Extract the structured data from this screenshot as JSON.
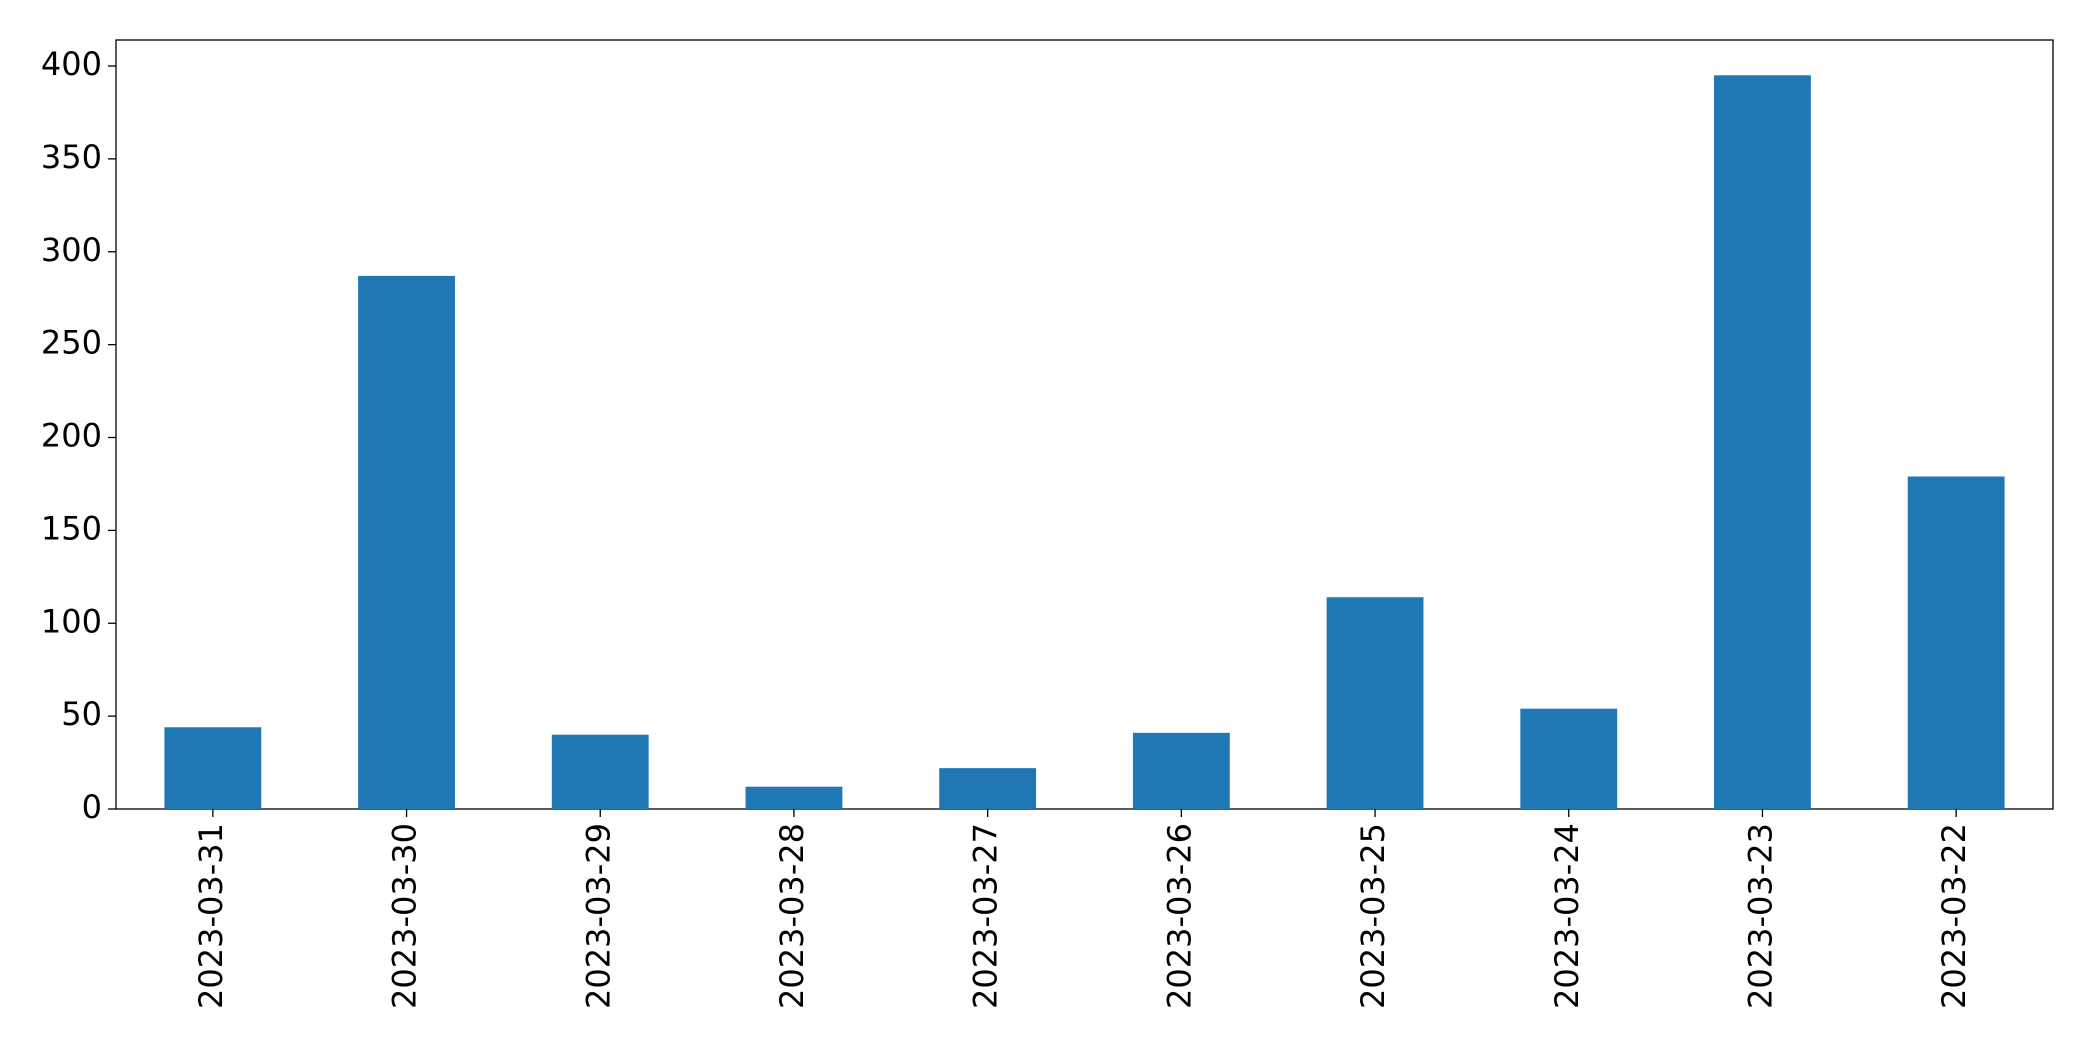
{
  "chart_data": {
    "type": "bar",
    "categories": [
      "2023-03-31",
      "2023-03-30",
      "2023-03-29",
      "2023-03-28",
      "2023-03-27",
      "2023-03-26",
      "2023-03-25",
      "2023-03-24",
      "2023-03-23",
      "2023-03-22"
    ],
    "values": [
      44,
      287,
      40,
      12,
      22,
      41,
      114,
      54,
      395,
      179
    ],
    "color": "#1f77b4",
    "ylim": [
      0,
      414
    ],
    "yticks": [
      0,
      50,
      100,
      150,
      200,
      250,
      300,
      350,
      400
    ],
    "grid": false
  }
}
